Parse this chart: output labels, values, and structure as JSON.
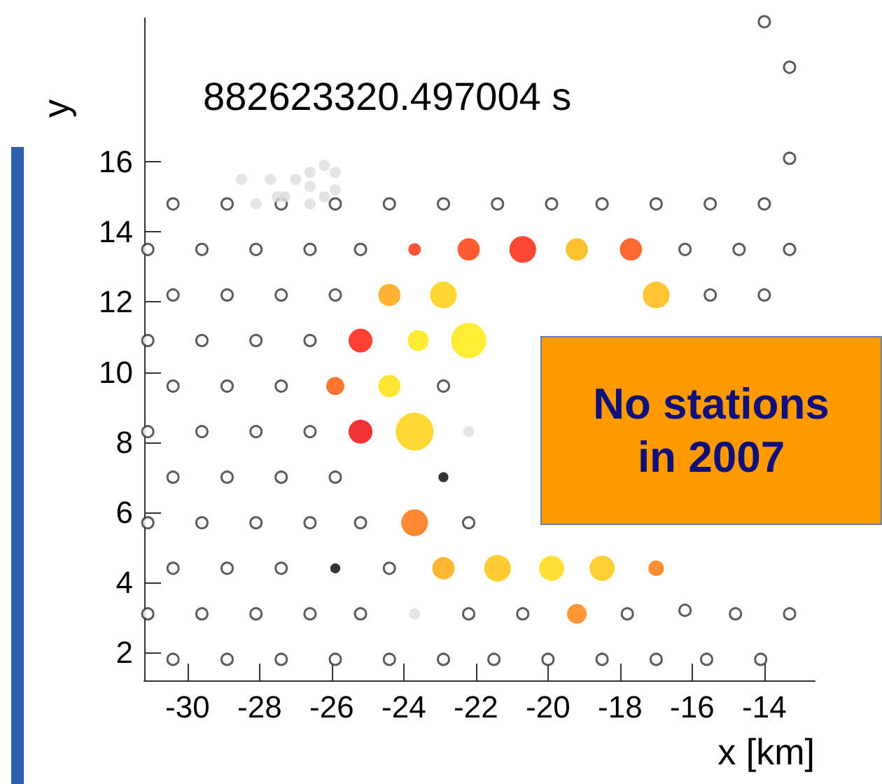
{
  "chart_data": {
    "type": "bubble",
    "title": "882623320.497004 s",
    "xlabel": "x [km]",
    "ylabel": "y",
    "annotations": [
      "No stations in 2007"
    ],
    "xlim": [
      -31.2,
      -12.6
    ],
    "ylim": [
      1.2,
      20.1
    ],
    "xticks": [
      -30,
      -28,
      -26,
      -24,
      -22,
      -20,
      -18,
      -16,
      -14
    ],
    "yticks": [
      2,
      4,
      6,
      8,
      10,
      12,
      14,
      16
    ],
    "grid": false,
    "marker": "circle",
    "series": [
      {
        "type": "scatter",
        "color": "#333333",
        "x": [
          -30.4,
          -28.9,
          -27.4,
          -25.9,
          -24.4,
          -22.9,
          -21.4,
          -19.9,
          -18.5,
          -17.0,
          -15.5,
          -14.0,
          -31.1,
          -29.6,
          -28.1,
          -26.6,
          -25.2,
          -16.2,
          -14.7,
          -13.3,
          -30.4,
          -28.9,
          -27.4,
          -25.9,
          -15.5,
          -14.0,
          -31.1,
          -29.6,
          -28.1,
          -26.6,
          -30.4,
          -28.9,
          -27.4,
          -22.9,
          -31.1,
          -29.6,
          -28.1,
          -26.6,
          -30.4,
          -28.9,
          -27.4,
          -25.9,
          -31.1,
          -29.6,
          -28.1,
          -26.6,
          -25.2,
          -22.2,
          -30.4,
          -28.9,
          -27.4,
          -24.4,
          -31.1,
          -29.6,
          -28.1,
          -26.6,
          -25.2,
          -22.2,
          -20.7,
          -17.8,
          -16.2,
          -14.8,
          -13.3,
          -30.4,
          -28.9,
          -27.4,
          -25.9,
          -24.4,
          -22.9,
          -21.5,
          -20.0,
          -18.5,
          -17.0,
          -15.6,
          -14.1,
          -14.0,
          -13.3,
          -13.3
        ],
        "values": [
          14.8,
          14.8,
          14.8,
          14.8,
          14.8,
          14.8,
          14.8,
          14.8,
          14.8,
          14.8,
          14.8,
          14.8,
          13.5,
          13.5,
          13.5,
          13.5,
          13.5,
          13.5,
          13.5,
          13.5,
          12.2,
          12.2,
          12.2,
          12.2,
          12.2,
          12.2,
          10.9,
          10.9,
          10.9,
          10.9,
          9.6,
          9.6,
          9.6,
          9.6,
          8.3,
          8.3,
          8.3,
          8.3,
          7.0,
          7.0,
          7.0,
          7.0,
          5.7,
          5.7,
          5.7,
          5.7,
          5.7,
          5.7,
          4.4,
          4.4,
          4.4,
          4.4,
          3.1,
          3.1,
          3.1,
          3.1,
          3.1,
          3.1,
          3.1,
          3.1,
          3.2,
          3.1,
          3.1,
          1.8,
          1.8,
          1.8,
          1.8,
          1.8,
          1.8,
          1.8,
          1.8,
          1.8,
          1.8,
          1.8,
          1.8,
          20.0,
          18.7,
          16.1
        ]
      },
      {
        "type": "scatter",
        "color": "#dddddd",
        "x": [
          -28.5,
          -27.7,
          -27.0,
          -26.6,
          -26.2,
          -25.9,
          -26.6,
          -25.9,
          -28.1,
          -27.5,
          -27.3,
          -26.6,
          -26.2,
          -22.2,
          -23.7
        ],
        "values": [
          15.5,
          15.5,
          15.5,
          15.7,
          15.9,
          15.7,
          15.3,
          15.2,
          14.8,
          15.0,
          15.0,
          14.8,
          15.0,
          8.3,
          3.1
        ]
      },
      {
        "x": [
          -23.7,
          -22.2,
          -20.7,
          -19.2,
          -17.7,
          -24.4,
          -22.9,
          -17.0,
          -25.2,
          -23.6,
          -22.2,
          -25.9,
          -24.4,
          -25.2,
          -23.7,
          -22.9,
          -23.7,
          -25.9,
          -22.9,
          -21.4,
          -19.9,
          -18.5,
          -17.0,
          -19.2
        ],
        "values": [
          13.5,
          13.5,
          13.5,
          13.5,
          13.5,
          12.2,
          12.2,
          12.2,
          10.9,
          10.9,
          10.9,
          9.6,
          9.6,
          8.3,
          8.3,
          7.0,
          5.7,
          4.4,
          4.4,
          4.4,
          4.4,
          4.4,
          4.4,
          3.1
        ],
        "sizes": [
          0.11,
          0.35,
          0.5,
          0.35,
          0.35,
          0.35,
          0.5,
          0.5,
          0.4,
          0.31,
          0.86,
          0.23,
          0.35,
          0.4,
          1,
          0.07,
          0.5,
          0.07,
          0.35,
          0.5,
          0.44,
          0.44,
          0.17,
          0.27
        ],
        "colors": [
          "#ff2a00",
          "#ff3300",
          "#ff1a00",
          "#ffb300",
          "#ff4400",
          "#ffa000",
          "#ffcc00",
          "#ffb800",
          "#ff1100",
          "#ffe600",
          "#ffe800",
          "#ff5500",
          "#ffe000",
          "#ee0000",
          "#ffd000",
          "#000000",
          "#ff6a00",
          "#000000",
          "#ffa500",
          "#ffc000",
          "#ffd800",
          "#ffc400",
          "#ff7000",
          "#ff7a00"
        ]
      }
    ]
  }
}
